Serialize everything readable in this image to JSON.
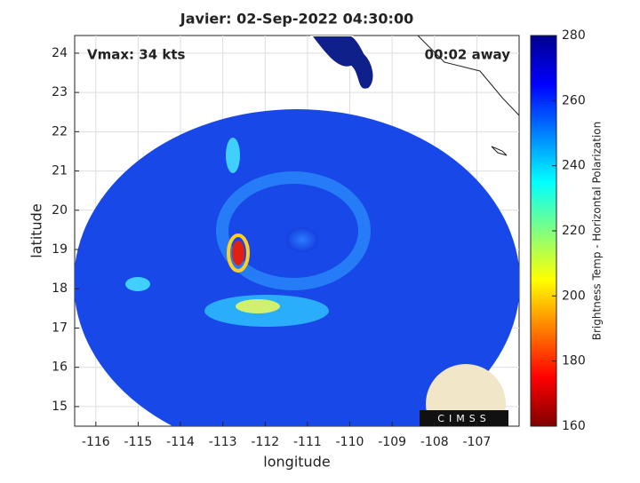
{
  "chart_data": {
    "type": "map",
    "title": "Javier: 02-Sep-2022 04:30:00",
    "annotations": [
      "Vmax: 34 kts",
      "00:02 away"
    ],
    "x_label": "longitude",
    "y_label": "latitude",
    "xlim": [
      -116.5,
      -106
    ],
    "ylim": [
      14.5,
      24.45
    ],
    "xticks": [
      -116,
      -115,
      -114,
      -113,
      -112,
      -111,
      -110,
      -109,
      -108,
      -107
    ],
    "yticks": [
      15,
      16,
      17,
      18,
      19,
      20,
      21,
      22,
      23,
      24
    ],
    "grid": true,
    "colorbar": {
      "label": "Brightness Temp - Horizontal Polarization",
      "lim": [
        160,
        280
      ],
      "ticks": [
        160,
        180,
        200,
        220,
        240,
        260,
        280
      ],
      "colormap": [
        "#800000",
        "#ff0000",
        "#ff8000",
        "#ffff00",
        "#80ff80",
        "#00ffff",
        "#0080ff",
        "#0000ff",
        "#00008f"
      ]
    },
    "logo_text": "CIMSS"
  }
}
